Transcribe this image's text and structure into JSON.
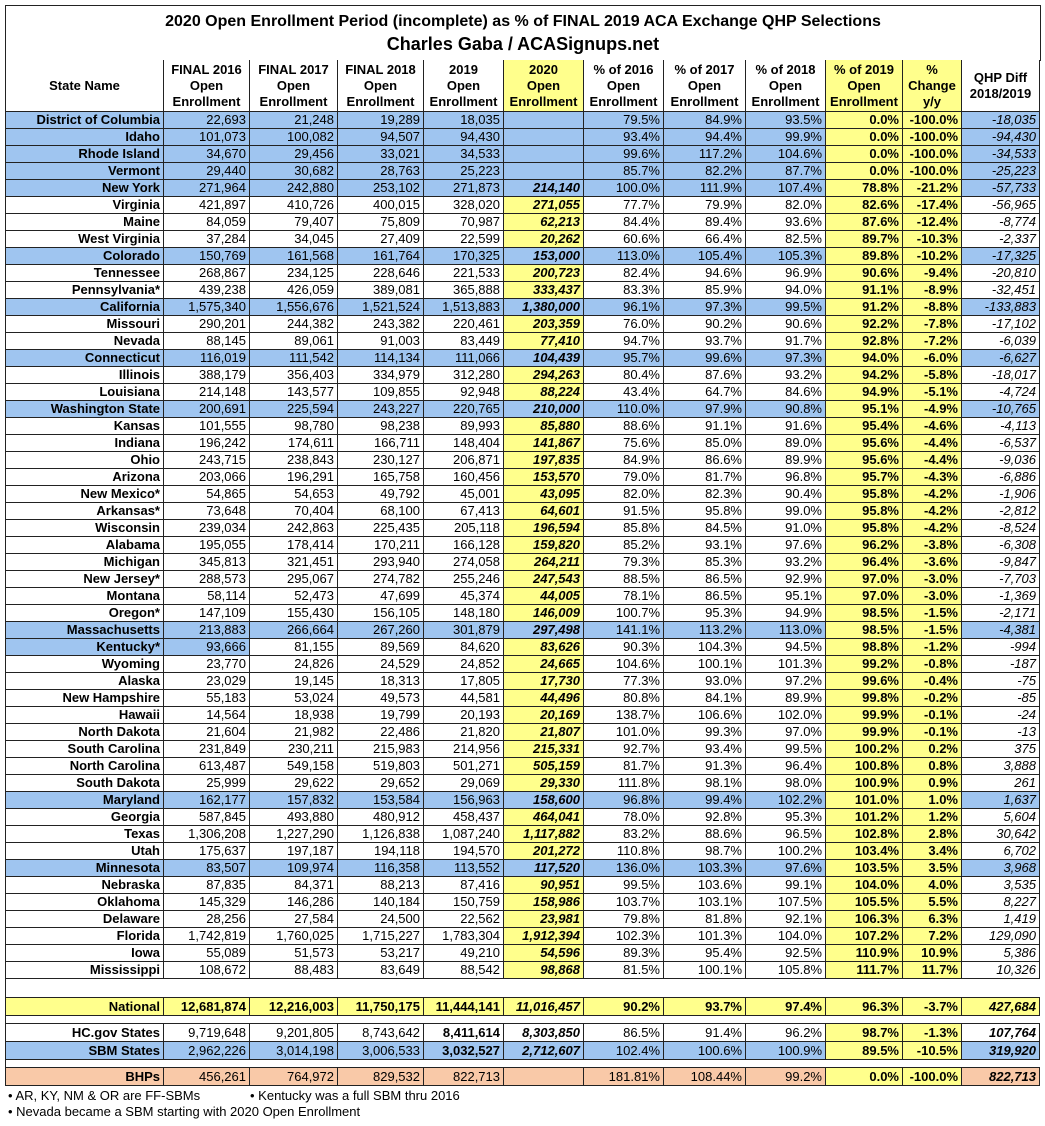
{
  "header": {
    "title": "2020 Open Enrollment Period (incomplete) as % of FINAL 2019 ACA Exchange QHP Selections",
    "subtitle": "Charles Gaba / ACASignups.net"
  },
  "table": {
    "columns": [
      [
        "State Name"
      ],
      [
        "FINAL 2016",
        "Open",
        "Enrollment"
      ],
      [
        "FINAL 2017",
        "Open",
        "Enrollment"
      ],
      [
        "FINAL 2018",
        "Open",
        "Enrollment"
      ],
      [
        "2019",
        "Open",
        "Enrollment"
      ],
      [
        "2020",
        "Open",
        "Enrollment"
      ],
      [
        "% of 2016",
        "Open",
        "Enrollment"
      ],
      [
        "% of 2017",
        "Open",
        "Enrollment"
      ],
      [
        "% of 2018",
        "Open",
        "Enrollment"
      ],
      [
        "% of 2019",
        "Open",
        "Enrollment"
      ],
      [
        "%",
        "Change",
        "y/y"
      ],
      [
        "QHP Diff",
        "2018/2019"
      ]
    ],
    "rows": [
      [
        "District of Columbia",
        "22,693",
        "21,248",
        "19,289",
        "18,035",
        null,
        "79.5%",
        "84.9%",
        "93.5%",
        "0.0%",
        "-100.0%",
        "-18,035"
      ],
      [
        "Idaho",
        "101,073",
        "100,082",
        "94,507",
        "94,430",
        null,
        "93.4%",
        "94.4%",
        "99.9%",
        "0.0%",
        "-100.0%",
        "-94,430"
      ],
      [
        "Rhode Island",
        "34,670",
        "29,456",
        "33,021",
        "34,533",
        null,
        "99.6%",
        "117.2%",
        "104.6%",
        "0.0%",
        "-100.0%",
        "-34,533"
      ],
      [
        "Vermont",
        "29,440",
        "30,682",
        "28,763",
        "25,223",
        null,
        "85.7%",
        "82.2%",
        "87.7%",
        "0.0%",
        "-100.0%",
        "-25,223"
      ],
      [
        "New York",
        "271,964",
        "242,880",
        "253,102",
        "271,873",
        "214,140",
        "100.0%",
        "111.9%",
        "107.4%",
        "78.8%",
        "-21.2%",
        "-57,733"
      ],
      [
        "Virginia",
        "421,897",
        "410,726",
        "400,015",
        "328,020",
        "271,055",
        "77.7%",
        "79.9%",
        "82.0%",
        "82.6%",
        "-17.4%",
        "-56,965"
      ],
      [
        "Maine",
        "84,059",
        "79,407",
        "75,809",
        "70,987",
        "62,213",
        "84.4%",
        "89.4%",
        "93.6%",
        "87.6%",
        "-12.4%",
        "-8,774"
      ],
      [
        "West Virginia",
        "37,284",
        "34,045",
        "27,409",
        "22,599",
        "20,262",
        "60.6%",
        "66.4%",
        "82.5%",
        "89.7%",
        "-10.3%",
        "-2,337"
      ],
      [
        "Colorado",
        "150,769",
        "161,568",
        "161,764",
        "170,325",
        "153,000",
        "113.0%",
        "105.4%",
        "105.3%",
        "89.8%",
        "-10.2%",
        "-17,325"
      ],
      [
        "Tennessee",
        "268,867",
        "234,125",
        "228,646",
        "221,533",
        "200,723",
        "82.4%",
        "94.6%",
        "96.9%",
        "90.6%",
        "-9.4%",
        "-20,810"
      ],
      [
        "Pennsylvania*",
        "439,238",
        "426,059",
        "389,081",
        "365,888",
        "333,437",
        "83.3%",
        "85.9%",
        "94.0%",
        "91.1%",
        "-8.9%",
        "-32,451"
      ],
      [
        "California",
        "1,575,340",
        "1,556,676",
        "1,521,524",
        "1,513,883",
        "1,380,000",
        "96.1%",
        "97.3%",
        "99.5%",
        "91.2%",
        "-8.8%",
        "-133,883"
      ],
      [
        "Missouri",
        "290,201",
        "244,382",
        "243,382",
        "220,461",
        "203,359",
        "76.0%",
        "90.2%",
        "90.6%",
        "92.2%",
        "-7.8%",
        "-17,102"
      ],
      [
        "Nevada",
        "88,145",
        "89,061",
        "91,003",
        "83,449",
        "77,410",
        "94.7%",
        "93.7%",
        "91.7%",
        "92.8%",
        "-7.2%",
        "-6,039"
      ],
      [
        "Connecticut",
        "116,019",
        "111,542",
        "114,134",
        "111,066",
        "104,439",
        "95.7%",
        "99.6%",
        "97.3%",
        "94.0%",
        "-6.0%",
        "-6,627"
      ],
      [
        "Illinois",
        "388,179",
        "356,403",
        "334,979",
        "312,280",
        "294,263",
        "80.4%",
        "87.6%",
        "93.2%",
        "94.2%",
        "-5.8%",
        "-18,017"
      ],
      [
        "Louisiana",
        "214,148",
        "143,577",
        "109,855",
        "92,948",
        "88,224",
        "43.4%",
        "64.7%",
        "84.6%",
        "94.9%",
        "-5.1%",
        "-4,724"
      ],
      [
        "Washington State",
        "200,691",
        "225,594",
        "243,227",
        "220,765",
        "210,000",
        "110.0%",
        "97.9%",
        "90.8%",
        "95.1%",
        "-4.9%",
        "-10,765"
      ],
      [
        "Kansas",
        "101,555",
        "98,780",
        "98,238",
        "89,993",
        "85,880",
        "88.6%",
        "91.1%",
        "91.6%",
        "95.4%",
        "-4.6%",
        "-4,113"
      ],
      [
        "Indiana",
        "196,242",
        "174,611",
        "166,711",
        "148,404",
        "141,867",
        "75.6%",
        "85.0%",
        "89.0%",
        "95.6%",
        "-4.4%",
        "-6,537"
      ],
      [
        "Ohio",
        "243,715",
        "238,843",
        "230,127",
        "206,871",
        "197,835",
        "84.9%",
        "86.6%",
        "89.9%",
        "95.6%",
        "-4.4%",
        "-9,036"
      ],
      [
        "Arizona",
        "203,066",
        "196,291",
        "165,758",
        "160,456",
        "153,570",
        "79.0%",
        "81.7%",
        "96.8%",
        "95.7%",
        "-4.3%",
        "-6,886"
      ],
      [
        "New Mexico*",
        "54,865",
        "54,653",
        "49,792",
        "45,001",
        "43,095",
        "82.0%",
        "82.3%",
        "90.4%",
        "95.8%",
        "-4.2%",
        "-1,906"
      ],
      [
        "Arkansas*",
        "73,648",
        "70,404",
        "68,100",
        "67,413",
        "64,601",
        "91.5%",
        "95.8%",
        "99.0%",
        "95.8%",
        "-4.2%",
        "-2,812"
      ],
      [
        "Wisconsin",
        "239,034",
        "242,863",
        "225,435",
        "205,118",
        "196,594",
        "85.8%",
        "84.5%",
        "91.0%",
        "95.8%",
        "-4.2%",
        "-8,524"
      ],
      [
        "Alabama",
        "195,055",
        "178,414",
        "170,211",
        "166,128",
        "159,820",
        "85.2%",
        "93.1%",
        "97.6%",
        "96.2%",
        "-3.8%",
        "-6,308"
      ],
      [
        "Michigan",
        "345,813",
        "321,451",
        "293,940",
        "274,058",
        "264,211",
        "79.3%",
        "85.3%",
        "93.2%",
        "96.4%",
        "-3.6%",
        "-9,847"
      ],
      [
        "New Jersey*",
        "288,573",
        "295,067",
        "274,782",
        "255,246",
        "247,543",
        "88.5%",
        "86.5%",
        "92.9%",
        "97.0%",
        "-3.0%",
        "-7,703"
      ],
      [
        "Montana",
        "58,114",
        "52,473",
        "47,699",
        "45,374",
        "44,005",
        "78.1%",
        "86.5%",
        "95.1%",
        "97.0%",
        "-3.0%",
        "-1,369"
      ],
      [
        "Oregon*",
        "147,109",
        "155,430",
        "156,105",
        "148,180",
        "146,009",
        "100.7%",
        "95.3%",
        "94.9%",
        "98.5%",
        "-1.5%",
        "-2,171"
      ],
      [
        "Massachusetts",
        "213,883",
        "266,664",
        "267,260",
        "301,879",
        "297,498",
        "141.1%",
        "113.2%",
        "113.0%",
        "98.5%",
        "-1.5%",
        "-4,381"
      ],
      [
        "Kentucky*",
        "93,666",
        "81,155",
        "89,569",
        "84,620",
        "83,626",
        "90.3%",
        "104.3%",
        "94.5%",
        "98.8%",
        "-1.2%",
        "-994"
      ],
      [
        "Wyoming",
        "23,770",
        "24,826",
        "24,529",
        "24,852",
        "24,665",
        "104.6%",
        "100.1%",
        "101.3%",
        "99.2%",
        "-0.8%",
        "-187"
      ],
      [
        "Alaska",
        "23,029",
        "19,145",
        "18,313",
        "17,805",
        "17,730",
        "77.3%",
        "93.0%",
        "97.2%",
        "99.6%",
        "-0.4%",
        "-75"
      ],
      [
        "New Hampshire",
        "55,183",
        "53,024",
        "49,573",
        "44,581",
        "44,496",
        "80.8%",
        "84.1%",
        "89.9%",
        "99.8%",
        "-0.2%",
        "-85"
      ],
      [
        "Hawaii",
        "14,564",
        "18,938",
        "19,799",
        "20,193",
        "20,169",
        "138.7%",
        "106.6%",
        "102.0%",
        "99.9%",
        "-0.1%",
        "-24"
      ],
      [
        "North Dakota",
        "21,604",
        "21,982",
        "22,486",
        "21,820",
        "21,807",
        "101.0%",
        "99.3%",
        "97.0%",
        "99.9%",
        "-0.1%",
        "-13"
      ],
      [
        "South Carolina",
        "231,849",
        "230,211",
        "215,983",
        "214,956",
        "215,331",
        "92.7%",
        "93.4%",
        "99.5%",
        "100.2%",
        "0.2%",
        "375"
      ],
      [
        "North Carolina",
        "613,487",
        "549,158",
        "519,803",
        "501,271",
        "505,159",
        "81.7%",
        "91.3%",
        "96.4%",
        "100.8%",
        "0.8%",
        "3,888"
      ],
      [
        "South Dakota",
        "25,999",
        "29,622",
        "29,652",
        "29,069",
        "29,330",
        "111.8%",
        "98.1%",
        "98.0%",
        "100.9%",
        "0.9%",
        "261"
      ],
      [
        "Maryland",
        "162,177",
        "157,832",
        "153,584",
        "156,963",
        "158,600",
        "96.8%",
        "99.4%",
        "102.2%",
        "101.0%",
        "1.0%",
        "1,637"
      ],
      [
        "Georgia",
        "587,845",
        "493,880",
        "480,912",
        "458,437",
        "464,041",
        "78.0%",
        "92.8%",
        "95.3%",
        "101.2%",
        "1.2%",
        "5,604"
      ],
      [
        "Texas",
        "1,306,208",
        "1,227,290",
        "1,126,838",
        "1,087,240",
        "1,117,882",
        "83.2%",
        "88.6%",
        "96.5%",
        "102.8%",
        "2.8%",
        "30,642"
      ],
      [
        "Utah",
        "175,637",
        "197,187",
        "194,118",
        "194,570",
        "201,272",
        "110.8%",
        "98.7%",
        "100.2%",
        "103.4%",
        "3.4%",
        "6,702"
      ],
      [
        "Minnesota",
        "83,507",
        "109,974",
        "116,358",
        "113,552",
        "117,520",
        "136.0%",
        "103.3%",
        "97.6%",
        "103.5%",
        "3.5%",
        "3,968"
      ],
      [
        "Nebraska",
        "87,835",
        "84,371",
        "88,213",
        "87,416",
        "90,951",
        "99.5%",
        "103.6%",
        "99.1%",
        "104.0%",
        "4.0%",
        "3,535"
      ],
      [
        "Oklahoma",
        "145,329",
        "146,286",
        "140,184",
        "150,759",
        "158,986",
        "103.7%",
        "103.1%",
        "107.5%",
        "105.5%",
        "5.5%",
        "8,227"
      ],
      [
        "Delaware",
        "28,256",
        "27,584",
        "24,500",
        "22,562",
        "23,981",
        "79.8%",
        "81.8%",
        "92.1%",
        "106.3%",
        "6.3%",
        "1,419"
      ],
      [
        "Florida",
        "1,742,819",
        "1,760,025",
        "1,715,227",
        "1,783,304",
        "1,912,394",
        "102.3%",
        "101.3%",
        "104.0%",
        "107.2%",
        "7.2%",
        "129,090"
      ],
      [
        "Iowa",
        "55,089",
        "51,573",
        "53,217",
        "49,210",
        "54,596",
        "89.3%",
        "95.4%",
        "92.5%",
        "110.9%",
        "10.9%",
        "5,386"
      ],
      [
        "Mississippi",
        "108,672",
        "88,483",
        "83,649",
        "88,542",
        "98,868",
        "81.5%",
        "100.1%",
        "105.8%",
        "111.7%",
        "11.7%",
        "10,326"
      ]
    ],
    "summary_rows": [
      [
        "National",
        "12,681,874",
        "12,216,003",
        "11,750,175",
        "11,444,141",
        "11,016,457",
        "90.2%",
        "93.7%",
        "97.4%",
        "96.3%",
        "-3.7%",
        "427,684"
      ],
      [
        "HC.gov States",
        "9,719,648",
        "9,201,805",
        "8,743,642",
        "8,411,614",
        "8,303,850",
        "86.5%",
        "91.4%",
        "96.2%",
        "98.7%",
        "-1.3%",
        "107,764"
      ],
      [
        "SBM States",
        "2,962,226",
        "3,014,198",
        "3,006,533",
        "3,032,527",
        "2,712,607",
        "102.4%",
        "100.6%",
        "100.9%",
        "89.5%",
        "-10.5%",
        "319,920"
      ],
      [
        "BHPs",
        "456,261",
        "764,972",
        "829,532",
        "822,713",
        null,
        "181.81%",
        "108.44%",
        "99.2%",
        "0.0%",
        "-100.0%",
        "822,713"
      ]
    ]
  },
  "footnotes": [
    "• AR, KY, NM & OR are FF-SBMs",
    "• Kentucky was a full SBM thru 2016",
    "• Nevada became a SBM starting with 2020 Open Enrollment"
  ]
}
